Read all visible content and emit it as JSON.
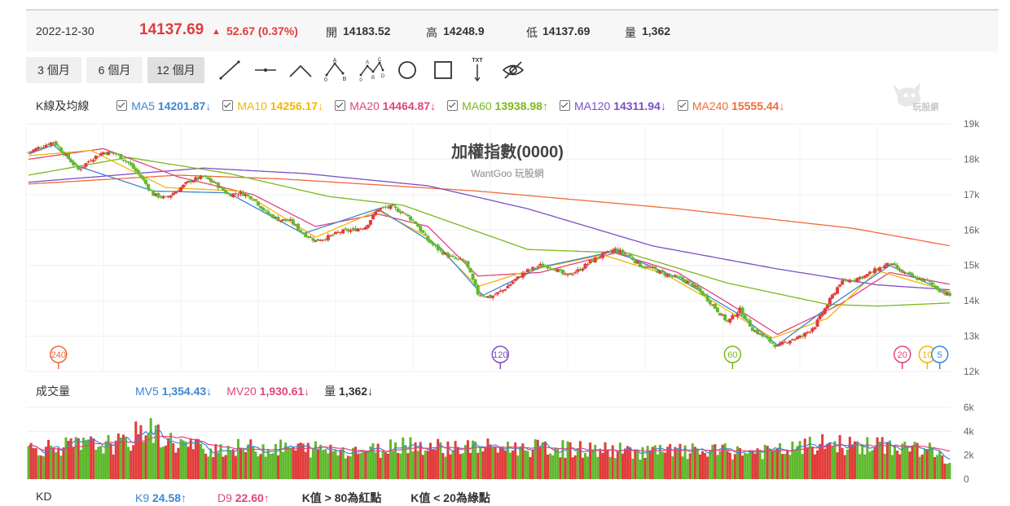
{
  "header": {
    "date": "2022-12-30",
    "price": "14137.69",
    "change_arrow": "▲",
    "change": "52.67 (0.37%)",
    "open_label": "開",
    "open": "14183.52",
    "high_label": "高",
    "high": "14248.9",
    "low_label": "低",
    "low": "14137.69",
    "volume_label": "量",
    "volume": "1,362"
  },
  "periods": [
    "3 個月",
    "6 個月",
    "12 個月"
  ],
  "active_period": "12 個月",
  "tools": [
    "line-tool-icon",
    "horizontal-line-tool-icon",
    "angle-tool-icon",
    "abc-pattern-icon",
    "abcd-pattern-icon",
    "circle-tool-icon",
    "rectangle-tool-icon",
    "text-tool-icon",
    "hide-drawings-icon"
  ],
  "tool_text": {
    "text_tool": "TXT",
    "A": "A",
    "B": "B",
    "C": "C",
    "D": "D",
    "O": "0"
  },
  "kline": {
    "label": "K線及均線",
    "ma": [
      {
        "name": "MA5",
        "value": "14201.87",
        "arrow": "↓",
        "color": "#3e86d4"
      },
      {
        "name": "MA10",
        "value": "14256.17",
        "arrow": "↓",
        "color": "#f2b705"
      },
      {
        "name": "MA20",
        "value": "14464.87",
        "arrow": "↓",
        "color": "#e0457b"
      },
      {
        "name": "MA60",
        "value": "13938.98",
        "arrow": "↑",
        "color": "#7cb81d"
      },
      {
        "name": "MA120",
        "value": "14311.94",
        "arrow": "↓",
        "color": "#7b4fc4"
      },
      {
        "name": "MA240",
        "value": "15555.44",
        "arrow": "↓",
        "color": "#f06a3b"
      }
    ]
  },
  "logo_text": "玩股網",
  "chart_data": [
    {
      "type": "candlestick",
      "title": "加權指數(0000)",
      "subtitle": "WantGoo 玩股網",
      "y_ticks": [
        "19k",
        "18k",
        "17k",
        "16k",
        "15k",
        "14k",
        "13k",
        "12k"
      ],
      "ylim": [
        12000,
        19000
      ],
      "last_close": 14137.69,
      "close_keypoints": [
        [
          0,
          18200
        ],
        [
          5,
          18350
        ],
        [
          10,
          18500
        ],
        [
          15,
          18100
        ],
        [
          20,
          17700
        ],
        [
          25,
          18000
        ],
        [
          30,
          18200
        ],
        [
          35,
          18150
        ],
        [
          40,
          17900
        ],
        [
          45,
          17500
        ],
        [
          50,
          17000
        ],
        [
          55,
          16900
        ],
        [
          60,
          17150
        ],
        [
          65,
          17400
        ],
        [
          70,
          17500
        ],
        [
          75,
          17300
        ],
        [
          80,
          17000
        ],
        [
          85,
          17050
        ],
        [
          90,
          16900
        ],
        [
          95,
          16500
        ],
        [
          100,
          16300
        ],
        [
          105,
          16250
        ],
        [
          110,
          15900
        ],
        [
          115,
          15700
        ],
        [
          120,
          15800
        ],
        [
          125,
          15950
        ],
        [
          130,
          16000
        ],
        [
          135,
          16100
        ],
        [
          140,
          16600
        ],
        [
          145,
          16650
        ],
        [
          150,
          16500
        ],
        [
          155,
          16200
        ],
        [
          160,
          15700
        ],
        [
          165,
          15400
        ],
        [
          170,
          15200
        ],
        [
          175,
          15100
        ],
        [
          180,
          14200
        ],
        [
          185,
          14100
        ],
        [
          190,
          14300
        ],
        [
          195,
          14600
        ],
        [
          200,
          14850
        ],
        [
          205,
          15000
        ],
        [
          210,
          14950
        ],
        [
          215,
          14700
        ],
        [
          220,
          14850
        ],
        [
          225,
          15100
        ],
        [
          230,
          15300
        ],
        [
          235,
          15450
        ],
        [
          240,
          15300
        ],
        [
          245,
          15000
        ],
        [
          250,
          14900
        ],
        [
          255,
          14750
        ],
        [
          260,
          14650
        ],
        [
          265,
          14500
        ],
        [
          270,
          14200
        ],
        [
          275,
          13800
        ],
        [
          280,
          13400
        ],
        [
          285,
          13750
        ],
        [
          290,
          13200
        ],
        [
          295,
          12950
        ],
        [
          300,
          12700
        ],
        [
          305,
          12900
        ],
        [
          310,
          13000
        ],
        [
          315,
          13300
        ],
        [
          320,
          13900
        ],
        [
          325,
          14500
        ],
        [
          330,
          14600
        ],
        [
          335,
          14700
        ],
        [
          340,
          14900
        ],
        [
          345,
          15050
        ],
        [
          350,
          14800
        ],
        [
          355,
          14650
        ],
        [
          360,
          14550
        ],
        [
          365,
          14300
        ],
        [
          369,
          14137.69
        ]
      ],
      "ma_series": [
        {
          "name": "MA240",
          "color": "#f06a3b",
          "points": [
            [
              0,
              17300
            ],
            [
              60,
              17550
            ],
            [
              100,
              17450
            ],
            [
              180,
              17100
            ],
            [
              260,
              16600
            ],
            [
              330,
              16050
            ],
            [
              369,
              15555
            ]
          ]
        },
        {
          "name": "MA120",
          "color": "#7b4fc4",
          "points": [
            [
              0,
              17350
            ],
            [
              70,
              17750
            ],
            [
              110,
              17600
            ],
            [
              160,
              17250
            ],
            [
              200,
              16600
            ],
            [
              250,
              15550
            ],
            [
              300,
              14900
            ],
            [
              340,
              14450
            ],
            [
              369,
              14312
            ]
          ]
        },
        {
          "name": "MA60",
          "color": "#7cb81d",
          "points": [
            [
              0,
              17550
            ],
            [
              40,
              18050
            ],
            [
              80,
              17600
            ],
            [
              120,
              16950
            ],
            [
              150,
              16700
            ],
            [
              200,
              15450
            ],
            [
              240,
              15350
            ],
            [
              280,
              14500
            ],
            [
              320,
              13900
            ],
            [
              340,
              13850
            ],
            [
              369,
              13939
            ]
          ]
        },
        {
          "name": "MA20",
          "color": "#e0457b",
          "points": [
            [
              0,
              18000
            ],
            [
              30,
              18300
            ],
            [
              60,
              17500
            ],
            [
              90,
              17000
            ],
            [
              115,
              16100
            ],
            [
              140,
              16450
            ],
            [
              160,
              16100
            ],
            [
              180,
              14700
            ],
            [
              205,
              14800
            ],
            [
              235,
              15350
            ],
            [
              260,
              14800
            ],
            [
              280,
              13950
            ],
            [
              300,
              13050
            ],
            [
              325,
              13900
            ],
            [
              345,
              14800
            ],
            [
              369,
              14465
            ]
          ]
        },
        {
          "name": "MA10",
          "color": "#f2b705",
          "points": [
            [
              0,
              18100
            ],
            [
              25,
              18250
            ],
            [
              55,
              17200
            ],
            [
              85,
              17100
            ],
            [
              115,
              15800
            ],
            [
              140,
              16550
            ],
            [
              160,
              15800
            ],
            [
              180,
              14400
            ],
            [
              200,
              14850
            ],
            [
              230,
              15300
            ],
            [
              255,
              14750
            ],
            [
              275,
              13950
            ],
            [
              298,
              12950
            ],
            [
              320,
              13500
            ],
            [
              340,
              14850
            ],
            [
              369,
              14256
            ]
          ]
        },
        {
          "name": "MA5",
          "color": "#3e86d4",
          "points": [
            [
              0,
              18150
            ],
            [
              10,
              18400
            ],
            [
              20,
              17800
            ],
            [
              50,
              17100
            ],
            [
              80,
              17050
            ],
            [
              110,
              15900
            ],
            [
              140,
              16600
            ],
            [
              165,
              15500
            ],
            [
              182,
              14150
            ],
            [
              205,
              14950
            ],
            [
              235,
              15400
            ],
            [
              260,
              14650
            ],
            [
              285,
              13600
            ],
            [
              300,
              12750
            ],
            [
              320,
              13800
            ],
            [
              345,
              15000
            ],
            [
              369,
              14202
            ]
          ]
        }
      ],
      "ma_markers": [
        {
          "label": "240",
          "color": "#f06a3b",
          "index": 12
        },
        {
          "label": "120",
          "color": "#7b4fc4",
          "index": 189
        },
        {
          "label": "60",
          "color": "#7cb81d",
          "index": 282
        },
        {
          "label": "20",
          "color": "#e0457b",
          "index": 350
        },
        {
          "label": "10",
          "color": "#f2b705",
          "index": 360
        },
        {
          "label": "5",
          "color": "#3e86d4",
          "index": 365
        }
      ]
    },
    {
      "type": "bar",
      "label": "成交量",
      "mv": [
        {
          "name": "MV5",
          "value": "1,354.43",
          "arrow": "↓",
          "color": "#3e86d4"
        },
        {
          "name": "MV20",
          "value": "1,930.61",
          "arrow": "↓",
          "color": "#e0457b"
        },
        {
          "name": "量",
          "value": "1,362",
          "arrow": "↓",
          "color": "#333333"
        }
      ],
      "y_ticks": [
        "6k",
        "4k",
        "2k",
        "0"
      ],
      "ylim": [
        0,
        6000
      ],
      "volume_keypoints": [
        [
          0,
          2600
        ],
        [
          20,
          2800
        ],
        [
          40,
          3000
        ],
        [
          45,
          4200
        ],
        [
          50,
          4000
        ],
        [
          55,
          3200
        ],
        [
          70,
          2600
        ],
        [
          100,
          2600
        ],
        [
          140,
          2400
        ],
        [
          150,
          3100
        ],
        [
          160,
          2700
        ],
        [
          200,
          2600
        ],
        [
          250,
          2300
        ],
        [
          300,
          2300
        ],
        [
          320,
          3000
        ],
        [
          330,
          2800
        ],
        [
          350,
          2700
        ],
        [
          360,
          2500
        ],
        [
          369,
          1362
        ]
      ]
    },
    {
      "type": "line",
      "label": "KD",
      "k": {
        "name": "K9",
        "value": "24.58",
        "arrow": "↑",
        "color": "#3e86d4"
      },
      "d": {
        "name": "D9",
        "value": "22.60",
        "arrow": "↑",
        "color": "#e0457b"
      },
      "notes": [
        "K值 > 80為紅點",
        "K值 < 20為綠點"
      ]
    }
  ]
}
